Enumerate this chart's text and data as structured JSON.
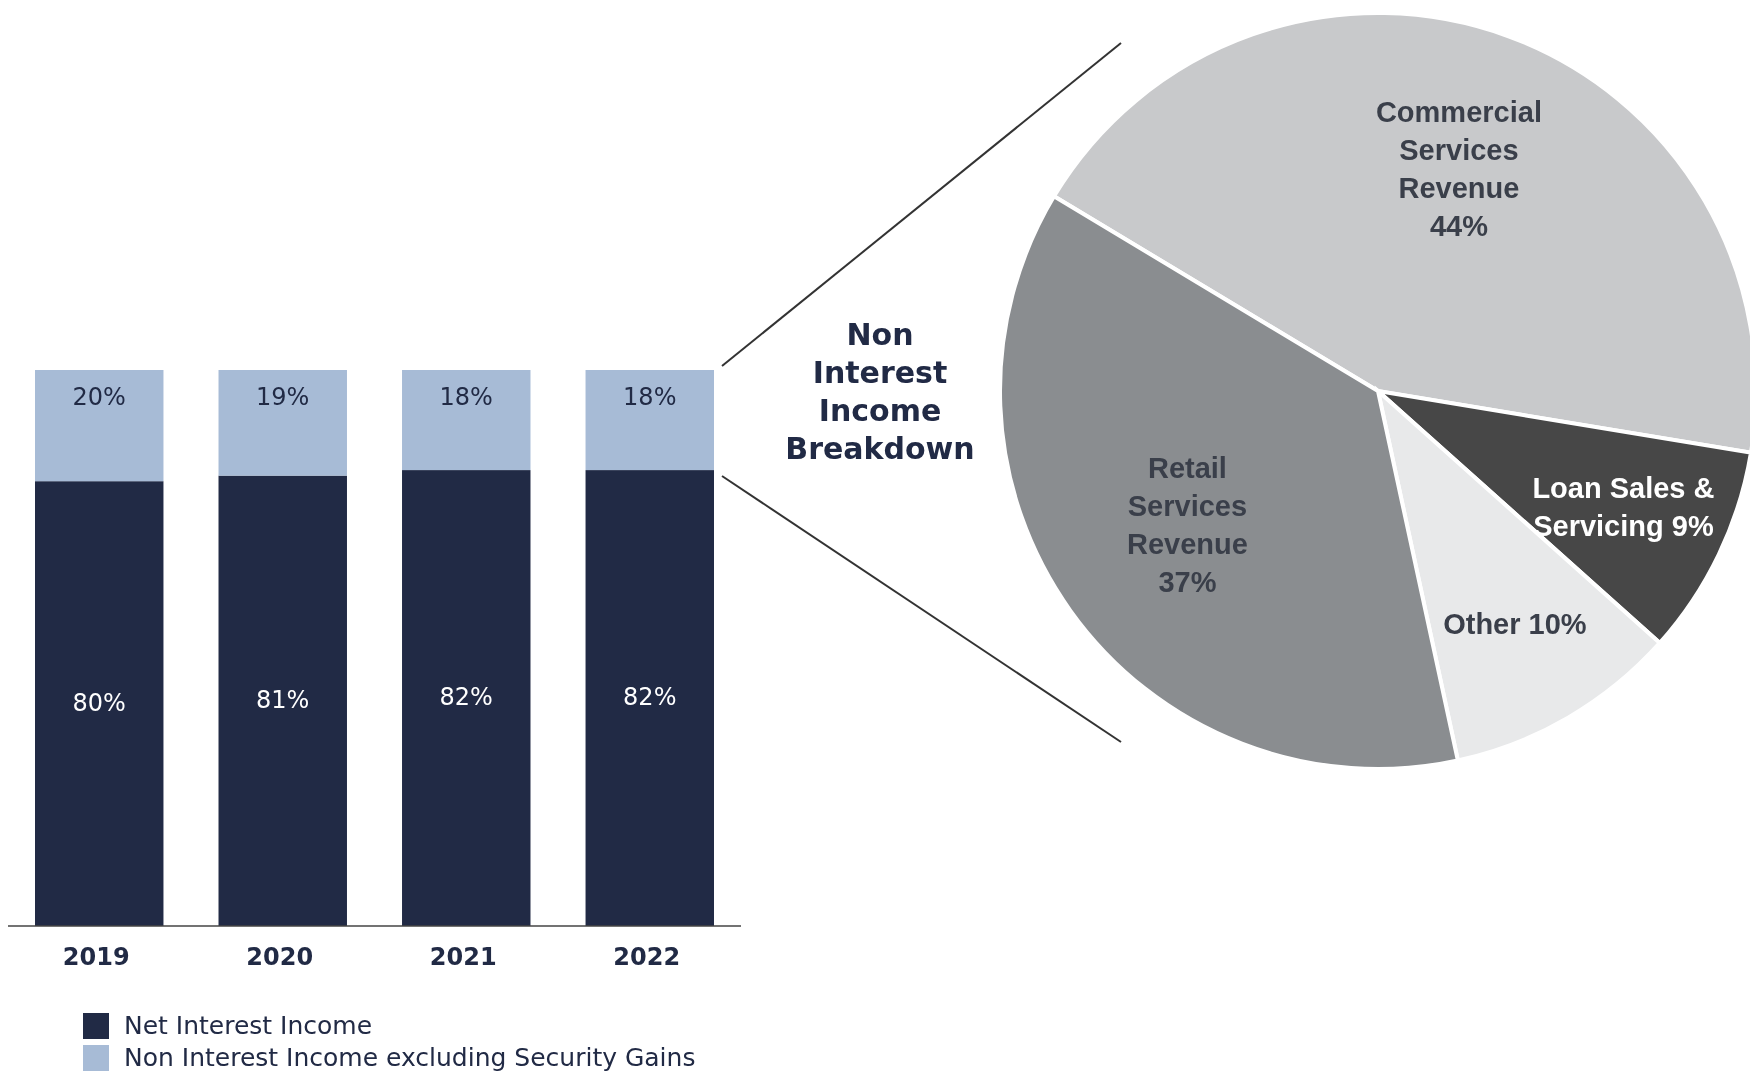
{
  "chart_data": [
    {
      "type": "bar",
      "stacked": true,
      "categories": [
        "2019",
        "2020",
        "2021",
        "2022"
      ],
      "ylim": [
        0,
        100
      ],
      "tick_labels": "x",
      "data_labels": true,
      "legend": "bottom",
      "series": [
        {
          "name": "Net Interest Income",
          "color": "#212a45",
          "values": [
            80,
            81,
            82,
            82
          ],
          "value_labels": [
            "80%",
            "81%",
            "82%",
            "82%"
          ]
        },
        {
          "name": "Non Interest Income excluding Security Gains",
          "color": "#a7bbd6",
          "values": [
            20,
            19,
            18,
            18
          ],
          "value_labels": [
            "20%",
            "19%",
            "18%",
            "18%"
          ]
        }
      ]
    },
    {
      "type": "pie",
      "title": "Non Interest Income Breakdown",
      "categories": [
        "Commercial Services Revenue",
        "Loan Sales & Servicing",
        "Other",
        "Retail Services Revenue"
      ],
      "values": [
        44,
        9,
        10,
        37
      ],
      "value_labels": [
        "44%",
        "9%",
        "10%",
        "37%"
      ],
      "colors": [
        "#c8c9cb",
        "#474747",
        "#e8e9ea",
        "#8a8d90"
      ]
    }
  ]
}
